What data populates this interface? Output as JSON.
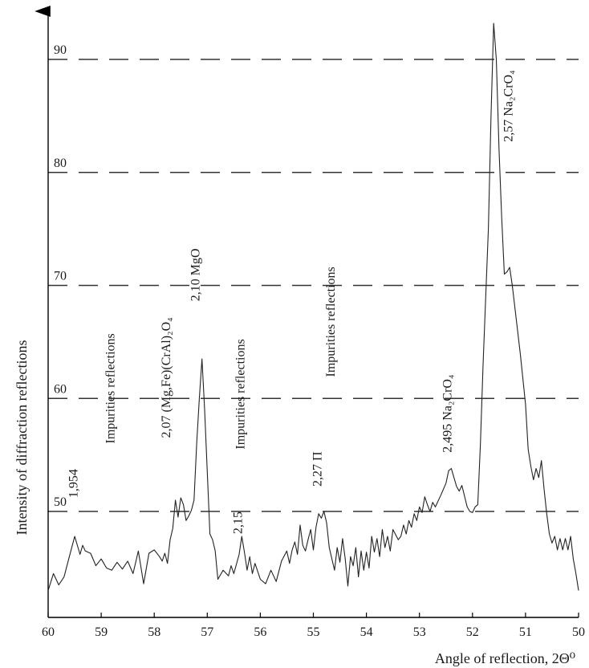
{
  "chart_data": {
    "type": "line",
    "xlabel": "Angle of reflection, 2Θ⁰",
    "ylabel": "Intensity of diffraction reflections",
    "xlim": [
      60,
      50
    ],
    "ylim": [
      43,
      94
    ],
    "x_reversed": true,
    "grid": "horizontal dashed",
    "x_ticks": [
      60,
      59,
      58,
      57,
      56,
      55,
      54,
      53,
      52,
      51,
      50
    ],
    "x_tick_labels": [
      "60",
      "59",
      "58",
      "57",
      "56",
      "55",
      "54",
      "53",
      "52",
      "51",
      "50"
    ],
    "y_gridlines": [
      50,
      60,
      70,
      80,
      90
    ],
    "y_gridline_labels": [
      "50",
      "60",
      "70",
      "80",
      "90"
    ],
    "annotations": [
      {
        "id": "ann-1954",
        "text": "1,954",
        "x": 59.45,
        "y": 51.2
      },
      {
        "id": "ann-impurities-1",
        "text": "Impurities reflections",
        "x": 58.75,
        "y": 56.0
      },
      {
        "id": "ann-207",
        "text": "2,07 (Mg,Fe)(CrAl)₂O₄",
        "x": 57.7,
        "y": 56.5
      },
      {
        "id": "ann-210",
        "text": "2,10 MgO",
        "x": 57.15,
        "y": 68.6
      },
      {
        "id": "ann-impurities-2",
        "text": "Impurities reflections",
        "x": 56.3,
        "y": 55.5
      },
      {
        "id": "ann-215",
        "text": "2,15",
        "x": 56.35,
        "y": 48.0
      },
      {
        "id": "ann-227",
        "text": "2,27 П",
        "x": 54.85,
        "y": 52.2
      },
      {
        "id": "ann-impurities-3",
        "text": "Impurities reflections",
        "x": 54.6,
        "y": 61.9
      },
      {
        "id": "ann-2495",
        "text": "2,495 Na₂CrO₄",
        "x": 52.4,
        "y": 55.2
      },
      {
        "id": "ann-257",
        "text": "2,57 Na₂CrO₄",
        "x": 51.25,
        "y": 82.7
      }
    ],
    "series": [
      {
        "values": [
          [
            60.0,
            43.0
          ],
          [
            59.9,
            44.5
          ],
          [
            59.8,
            43.5
          ],
          [
            59.7,
            44.2
          ],
          [
            59.6,
            46.0
          ],
          [
            59.5,
            47.8
          ],
          [
            59.4,
            46.2
          ],
          [
            59.35,
            47.0
          ],
          [
            59.3,
            46.5
          ],
          [
            59.2,
            46.3
          ],
          [
            59.1,
            45.2
          ],
          [
            59.0,
            45.8
          ],
          [
            58.9,
            45.0
          ],
          [
            58.8,
            44.8
          ],
          [
            58.7,
            45.5
          ],
          [
            58.6,
            44.9
          ],
          [
            58.5,
            45.6
          ],
          [
            58.4,
            44.5
          ],
          [
            58.3,
            46.5
          ],
          [
            58.2,
            43.6
          ],
          [
            58.1,
            46.3
          ],
          [
            58.0,
            46.6
          ],
          [
            57.9,
            46.0
          ],
          [
            57.85,
            45.6
          ],
          [
            57.8,
            46.3
          ],
          [
            57.75,
            45.4
          ],
          [
            57.7,
            47.5
          ],
          [
            57.65,
            48.5
          ],
          [
            57.6,
            51.0
          ],
          [
            57.55,
            49.5
          ],
          [
            57.5,
            51.2
          ],
          [
            57.45,
            50.6
          ],
          [
            57.4,
            49.2
          ],
          [
            57.35,
            49.6
          ],
          [
            57.3,
            50.1
          ],
          [
            57.25,
            51.0
          ],
          [
            57.2,
            56.0
          ],
          [
            57.15,
            60.0
          ],
          [
            57.1,
            63.5
          ],
          [
            57.05,
            59.0
          ],
          [
            57.0,
            53.5
          ],
          [
            56.95,
            48.0
          ],
          [
            56.9,
            47.5
          ],
          [
            56.85,
            46.5
          ],
          [
            56.8,
            44.0
          ],
          [
            56.7,
            44.8
          ],
          [
            56.6,
            44.3
          ],
          [
            56.55,
            45.2
          ],
          [
            56.5,
            44.5
          ],
          [
            56.4,
            46.2
          ],
          [
            56.35,
            47.8
          ],
          [
            56.3,
            46.4
          ],
          [
            56.25,
            44.8
          ],
          [
            56.2,
            46.0
          ],
          [
            56.15,
            44.5
          ],
          [
            56.1,
            45.4
          ],
          [
            56.0,
            44.0
          ],
          [
            55.9,
            43.6
          ],
          [
            55.8,
            44.8
          ],
          [
            55.7,
            43.8
          ],
          [
            55.6,
            45.6
          ],
          [
            55.5,
            46.5
          ],
          [
            55.45,
            45.4
          ],
          [
            55.4,
            46.6
          ],
          [
            55.35,
            47.3
          ],
          [
            55.3,
            46.2
          ],
          [
            55.25,
            48.8
          ],
          [
            55.2,
            47.0
          ],
          [
            55.15,
            46.5
          ],
          [
            55.1,
            47.5
          ],
          [
            55.05,
            48.4
          ],
          [
            55.0,
            46.6
          ],
          [
            54.95,
            48.6
          ],
          [
            54.9,
            49.8
          ],
          [
            54.85,
            49.4
          ],
          [
            54.8,
            50.0
          ],
          [
            54.75,
            49.0
          ],
          [
            54.7,
            46.8
          ],
          [
            54.6,
            44.8
          ],
          [
            54.55,
            46.8
          ],
          [
            54.5,
            45.5
          ],
          [
            54.45,
            47.6
          ],
          [
            54.4,
            45.8
          ],
          [
            54.35,
            43.4
          ],
          [
            54.3,
            46.0
          ],
          [
            54.25,
            45.2
          ],
          [
            54.2,
            46.8
          ],
          [
            54.15,
            44.2
          ],
          [
            54.1,
            46.5
          ],
          [
            54.05,
            44.8
          ],
          [
            54.0,
            46.4
          ],
          [
            53.95,
            45.0
          ],
          [
            53.9,
            47.8
          ],
          [
            53.85,
            46.4
          ],
          [
            53.8,
            47.6
          ],
          [
            53.75,
            46.0
          ],
          [
            53.7,
            48.4
          ],
          [
            53.65,
            46.8
          ],
          [
            53.6,
            47.8
          ],
          [
            53.55,
            46.5
          ],
          [
            53.5,
            48.4
          ],
          [
            53.4,
            47.5
          ],
          [
            53.35,
            47.8
          ],
          [
            53.3,
            48.8
          ],
          [
            53.25,
            48.0
          ],
          [
            53.2,
            49.2
          ],
          [
            53.15,
            48.6
          ],
          [
            53.1,
            49.8
          ],
          [
            53.05,
            49.2
          ],
          [
            53.0,
            50.4
          ],
          [
            52.95,
            49.9
          ],
          [
            52.9,
            51.3
          ],
          [
            52.85,
            50.6
          ],
          [
            52.8,
            50.0
          ],
          [
            52.75,
            50.8
          ],
          [
            52.7,
            50.4
          ],
          [
            52.6,
            51.4
          ],
          [
            52.5,
            52.5
          ],
          [
            52.45,
            53.6
          ],
          [
            52.4,
            53.8
          ],
          [
            52.35,
            53.0
          ],
          [
            52.3,
            52.2
          ],
          [
            52.25,
            51.8
          ],
          [
            52.2,
            52.3
          ],
          [
            52.1,
            50.4
          ],
          [
            52.05,
            50.0
          ],
          [
            52.0,
            49.9
          ],
          [
            51.95,
            50.4
          ],
          [
            51.9,
            50.6
          ],
          [
            51.85,
            56.0
          ],
          [
            51.8,
            63.0
          ],
          [
            51.7,
            75.0
          ],
          [
            51.65,
            85.0
          ],
          [
            51.6,
            93.2
          ],
          [
            51.55,
            90.0
          ],
          [
            51.5,
            82.0
          ],
          [
            51.45,
            76.0
          ],
          [
            51.4,
            71.0
          ],
          [
            51.35,
            71.2
          ],
          [
            51.3,
            71.6
          ],
          [
            51.25,
            70.0
          ],
          [
            51.2,
            68.0
          ],
          [
            51.1,
            64.0
          ],
          [
            51.0,
            59.5
          ],
          [
            50.95,
            55.5
          ],
          [
            50.9,
            54.0
          ],
          [
            50.85,
            52.8
          ],
          [
            50.8,
            53.8
          ],
          [
            50.75,
            53.0
          ],
          [
            50.7,
            54.5
          ],
          [
            50.65,
            52.0
          ],
          [
            50.6,
            49.8
          ],
          [
            50.55,
            48.0
          ],
          [
            50.5,
            47.2
          ],
          [
            50.45,
            47.8
          ],
          [
            50.4,
            46.6
          ],
          [
            50.35,
            47.6
          ],
          [
            50.3,
            46.6
          ],
          [
            50.25,
            47.6
          ],
          [
            50.2,
            46.6
          ],
          [
            50.15,
            47.8
          ],
          [
            50.1,
            45.8
          ],
          [
            50.05,
            44.5
          ],
          [
            50.0,
            43.0
          ]
        ]
      }
    ]
  }
}
